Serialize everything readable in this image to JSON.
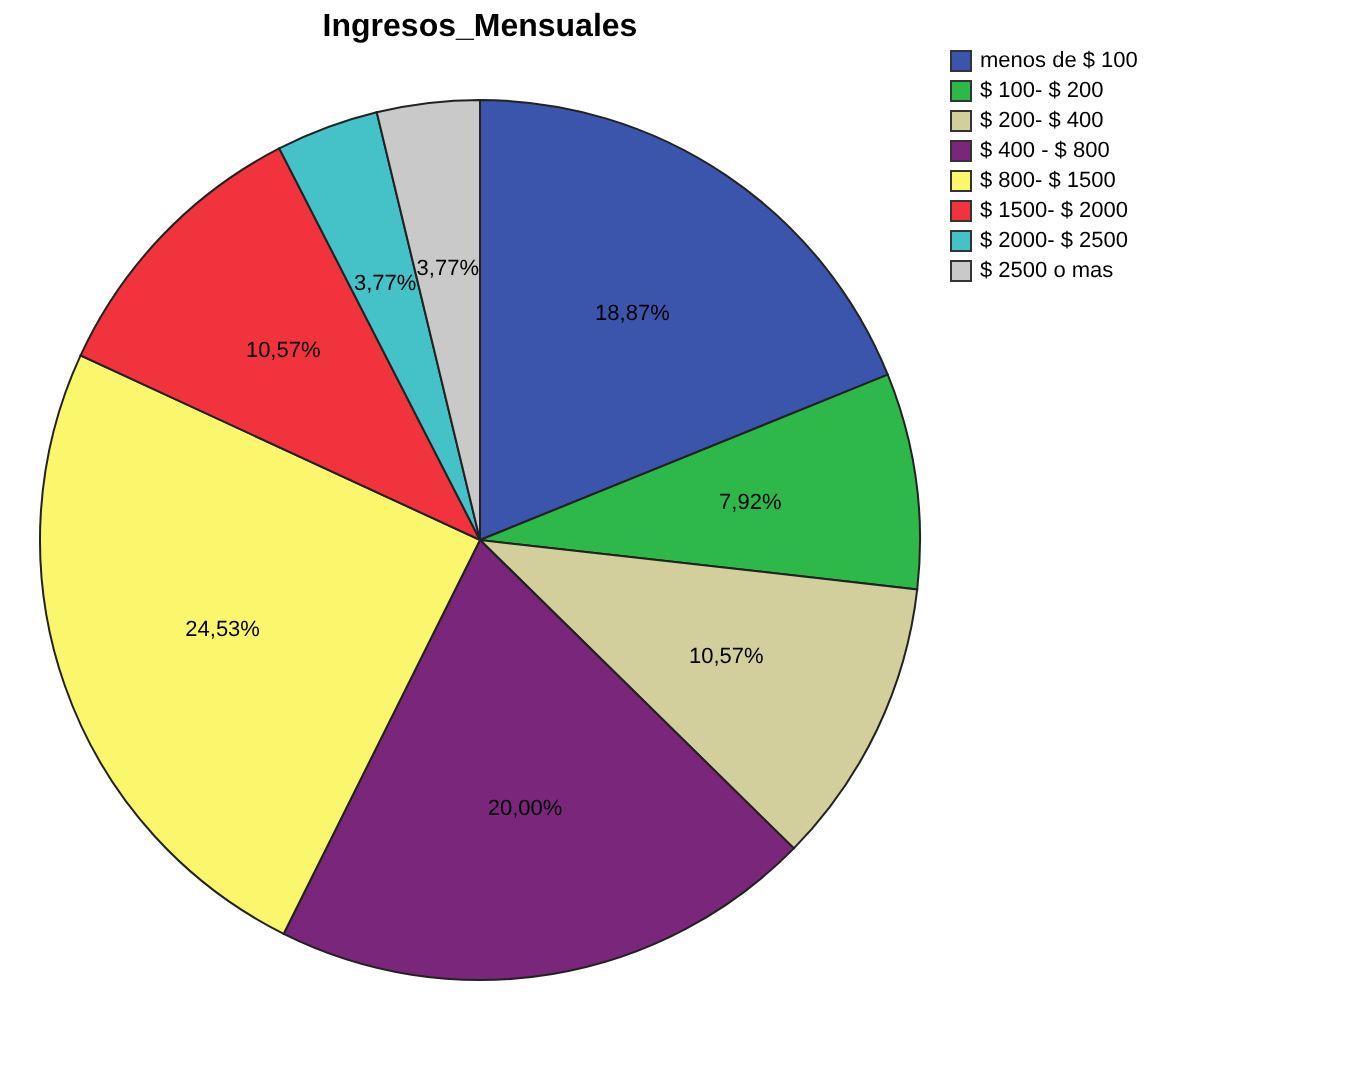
{
  "chart_data": {
    "type": "pie",
    "title": "Ingresos_Mensuales",
    "categories": [
      "menos de $ 100",
      "$ 100- $ 200",
      "$ 200- $ 400",
      "$ 400 - $ 800",
      "$ 800- $ 1500",
      "$ 1500- $ 2000",
      "$ 2000- $ 2500",
      "$ 2500 o mas"
    ],
    "values": [
      18.87,
      7.92,
      10.57,
      20.0,
      24.53,
      10.57,
      3.77,
      3.77
    ],
    "value_labels": [
      "18,87%",
      "7,92%",
      "10,57%",
      "20,00%",
      "24,53%",
      "10,57%",
      "3,77%",
      "3,77%"
    ],
    "colors": [
      "#3c55ac",
      "#2fb84a",
      "#d3cf9c",
      "#7a277b",
      "#fbf76c",
      "#f0333d",
      "#45c1c8",
      "#c9c9c9"
    ],
    "legend": "top right"
  }
}
